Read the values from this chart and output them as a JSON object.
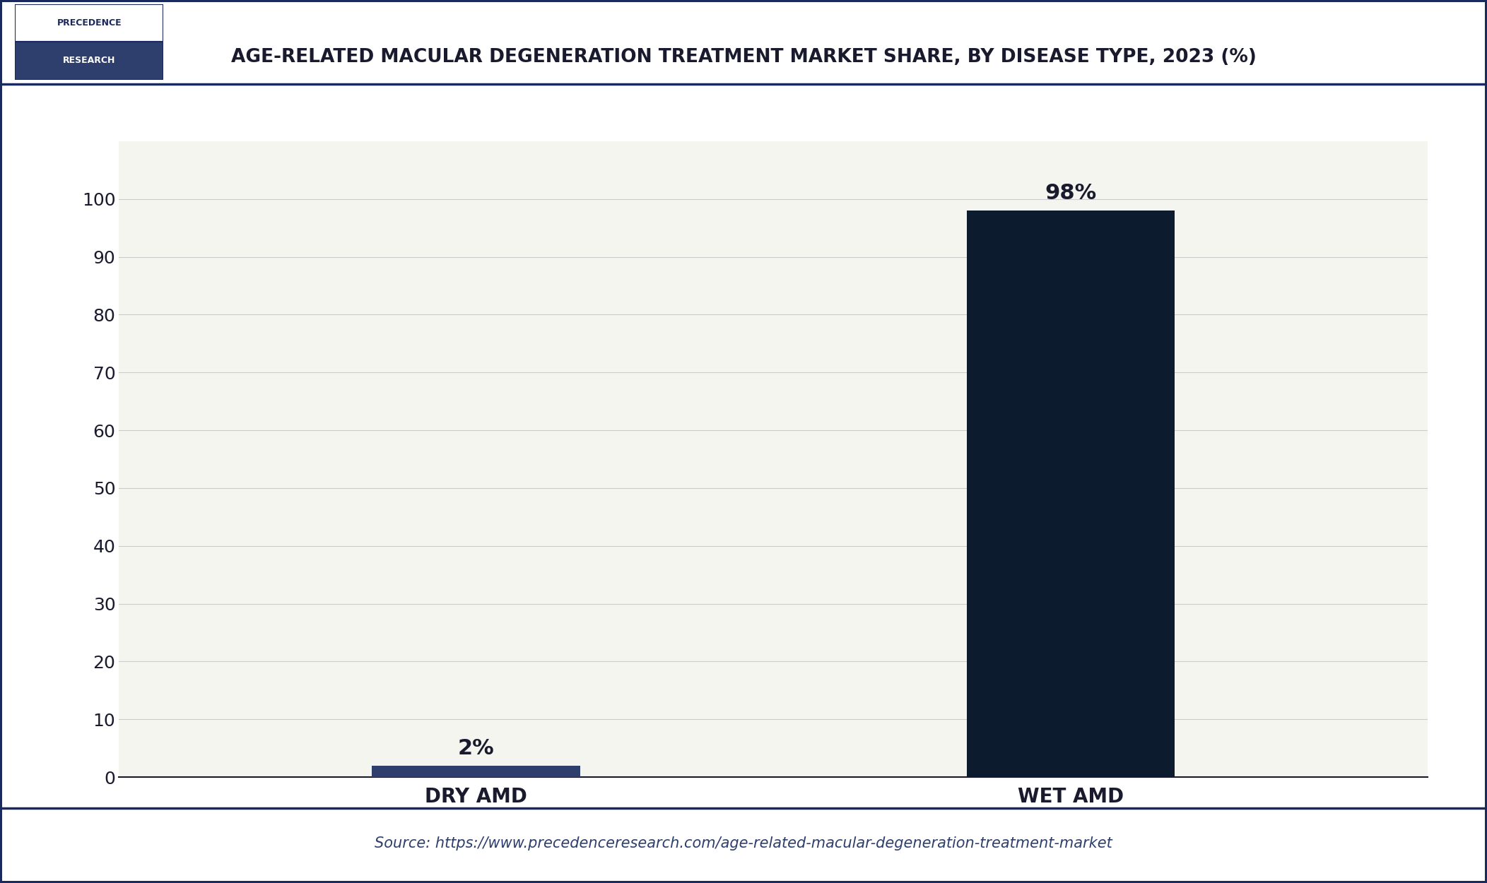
{
  "title": "AGE-RELATED MACULAR DEGENERATION TREATMENT MARKET SHARE, BY DISEASE TYPE, 2023 (%)",
  "categories": [
    "DRY AMD",
    "WET AMD"
  ],
  "values": [
    2,
    98
  ],
  "bar_colors": [
    "#2e3f6e",
    "#0d1b2e"
  ],
  "bar_labels": [
    "2%",
    "98%"
  ],
  "ylim": [
    0,
    110
  ],
  "yticks": [
    0,
    10,
    20,
    30,
    40,
    50,
    60,
    70,
    80,
    90,
    100
  ],
  "background_color": "#ffffff",
  "plot_bg_color": "#f5f5f0",
  "title_color": "#1a1a2e",
  "tick_color": "#1a1a2e",
  "grid_color": "#cccccc",
  "source_text": "Source: https://www.precedenceresearch.com/age-related-macular-degeneration-treatment-market",
  "logo_top_text": "PRECEDENCE",
  "logo_bottom_text": "RESEARCH",
  "logo_top_bg": "#ffffff",
  "logo_bottom_bg": "#2e3f6e",
  "border_color": "#1a2a5e"
}
